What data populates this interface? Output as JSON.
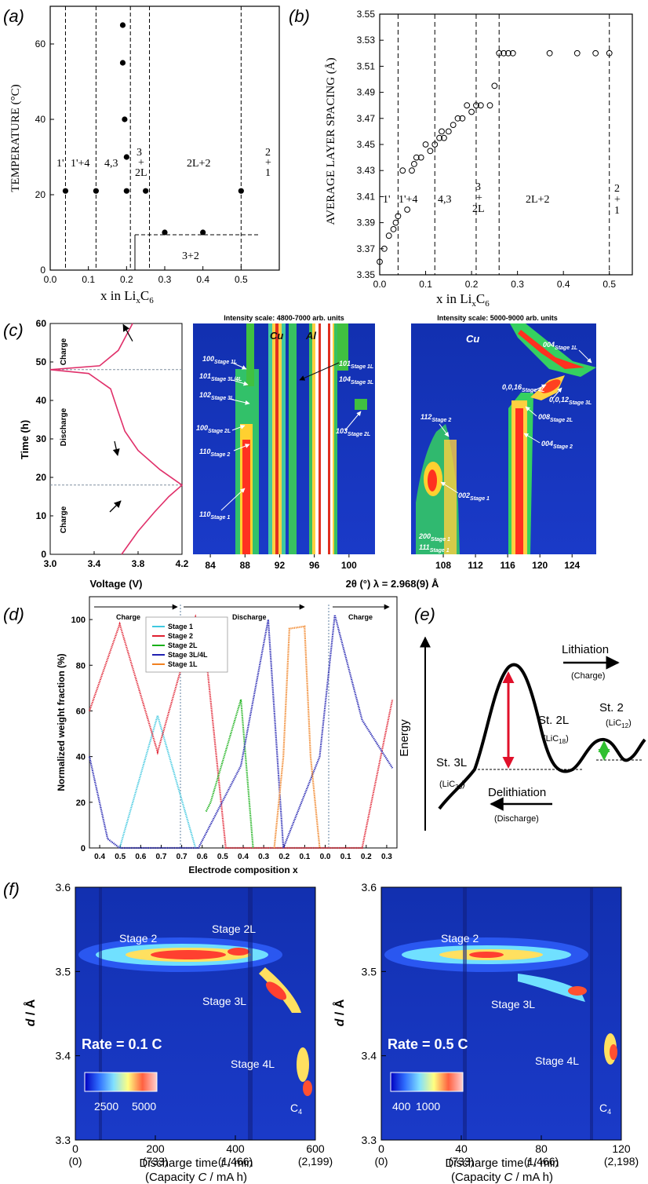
{
  "panel_labels": {
    "a": "(a)",
    "b": "(b)",
    "c": "(c)",
    "d": "(d)",
    "e": "(e)",
    "f": "(f)"
  },
  "chart_data": [
    {
      "id": "a",
      "type": "scatter",
      "xlabel_parts": [
        "x in Li",
        "x",
        "C",
        "6"
      ],
      "ylabel": "TEMPERATURE (°C)",
      "xlim": [
        0,
        0.6
      ],
      "ylim": [
        0,
        70
      ],
      "xticks": [
        "0.0",
        "0.1",
        "0.2",
        "0.3",
        "0.4",
        "0.5"
      ],
      "yticks": [
        "0",
        "20",
        "40",
        "60"
      ],
      "points": [
        [
          0.04,
          21
        ],
        [
          0.12,
          21
        ],
        [
          0.19,
          65
        ],
        [
          0.19,
          55
        ],
        [
          0.195,
          40
        ],
        [
          0.2,
          30
        ],
        [
          0.2,
          21
        ],
        [
          0.25,
          21
        ],
        [
          0.5,
          21
        ],
        [
          0.3,
          10
        ],
        [
          0.4,
          10
        ]
      ],
      "vlines": [
        0.04,
        0.12,
        0.21,
        0.26,
        0.5
      ],
      "regions": [
        "1'",
        "1'+4",
        "4,3",
        "3",
        "+",
        "2L",
        "2L+2",
        "2",
        "+",
        "1",
        "3+2"
      ]
    },
    {
      "id": "b",
      "type": "scatter",
      "xlabel_parts": [
        "x in Li",
        "x",
        "C",
        "6"
      ],
      "ylabel": "AVERAGE LAYER SPACING (Å)",
      "xlim": [
        0,
        0.55
      ],
      "ylim": [
        3.35,
        3.55
      ],
      "xticks": [
        "0.0",
        "0.1",
        "0.2",
        "0.3",
        "0.4",
        "0.5"
      ],
      "yticks": [
        "3.35",
        "3.37",
        "3.39",
        "3.41",
        "3.43",
        "3.45",
        "3.47",
        "3.49",
        "3.51",
        "3.53",
        "3.55"
      ],
      "points": [
        [
          0,
          3.36
        ],
        [
          0.01,
          3.37
        ],
        [
          0.02,
          3.38
        ],
        [
          0.03,
          3.385
        ],
        [
          0.035,
          3.39
        ],
        [
          0.04,
          3.395
        ],
        [
          0.05,
          3.43
        ],
        [
          0.06,
          3.4
        ],
        [
          0.07,
          3.43
        ],
        [
          0.075,
          3.435
        ],
        [
          0.08,
          3.44
        ],
        [
          0.09,
          3.44
        ],
        [
          0.1,
          3.45
        ],
        [
          0.11,
          3.445
        ],
        [
          0.12,
          3.45
        ],
        [
          0.13,
          3.455
        ],
        [
          0.135,
          3.46
        ],
        [
          0.14,
          3.455
        ],
        [
          0.15,
          3.46
        ],
        [
          0.16,
          3.465
        ],
        [
          0.17,
          3.47
        ],
        [
          0.18,
          3.47
        ],
        [
          0.19,
          3.48
        ],
        [
          0.2,
          3.475
        ],
        [
          0.21,
          3.48
        ],
        [
          0.22,
          3.48
        ],
        [
          0.24,
          3.48
        ],
        [
          0.25,
          3.495
        ],
        [
          0.26,
          3.52
        ],
        [
          0.27,
          3.52
        ],
        [
          0.28,
          3.52
        ],
        [
          0.29,
          3.52
        ],
        [
          0.37,
          3.52
        ],
        [
          0.43,
          3.52
        ],
        [
          0.47,
          3.52
        ],
        [
          0.5,
          3.52
        ]
      ],
      "vlines": [
        0.04,
        0.12,
        0.21,
        0.26,
        0.5
      ],
      "regions": [
        "1'",
        "1'+4",
        "4,3",
        "3",
        "+",
        "2L",
        "2L+2",
        "2",
        "+",
        "1"
      ]
    },
    {
      "id": "c1",
      "type": "line",
      "xlabel": "Voltage (V)",
      "ylabel": "Time (h)",
      "xlim": [
        3.0,
        4.2
      ],
      "ylim": [
        0,
        60
      ],
      "xticks": [
        "3.0",
        "3.4",
        "3.8",
        "4.2"
      ],
      "yticks": [
        "0",
        "10",
        "20",
        "30",
        "40",
        "50",
        "60"
      ],
      "series": [
        {
          "name": "voltage",
          "x": [
            3.65,
            3.8,
            3.95,
            4.08,
            4.2,
            4.0,
            3.8,
            3.68,
            3.62,
            3.55,
            3.35,
            3.0,
            3.45,
            3.62,
            3.75
          ],
          "y": [
            0,
            6,
            11,
            15,
            18,
            22,
            27,
            32,
            37,
            43,
            47,
            48,
            49,
            53,
            60
          ]
        }
      ],
      "hlines": [
        18,
        48
      ],
      "labels": [
        "Charge",
        "Discharge",
        "Charge"
      ]
    },
    {
      "id": "c2",
      "type": "heatmap",
      "title": "Intensity scale: 4800-7000 arb. units",
      "xlim": [
        82,
        103
      ],
      "ylim": [
        0,
        60
      ],
      "xticks": [
        "84",
        "88",
        "92",
        "96",
        "100"
      ],
      "annotations": [
        "Cu",
        "Al",
        "100",
        "Stage 1L",
        "101",
        "Stage 3L/4L",
        "102",
        "Stage 3L",
        "100",
        "Stage 2L",
        "110",
        "Stage 2",
        "110",
        "Stage 1",
        "101",
        "Stage 1L",
        "104",
        "Stage 3L",
        "103",
        "Stage 2L"
      ]
    },
    {
      "id": "c3",
      "type": "heatmap",
      "title": "Intensity scale: 5000-9000 arb. units",
      "xlim": [
        104,
        127
      ],
      "ylim": [
        0,
        60
      ],
      "xticks": [
        "108",
        "112",
        "116",
        "120",
        "124"
      ],
      "shared_xlabel": "2θ (°) λ = 2.968(9) Å",
      "annotations": [
        "Cu",
        "004",
        "Stage 1L",
        "0,0,16",
        "Stage 4L",
        "0,0,12",
        "Stage 3L",
        "008",
        "Stage 2L",
        "004",
        "Stage 2",
        "112",
        "Stage 2",
        "002",
        "Stage 1",
        "200",
        "Stage 1",
        "111",
        "Stage 1"
      ]
    },
    {
      "id": "d",
      "type": "line",
      "xlabel": "Electrode composition x",
      "ylabel": "Normalized weight fraction (%)",
      "ylim": [
        0,
        110
      ],
      "yticks": [
        "0",
        "20",
        "40",
        "60",
        "80",
        "100"
      ],
      "xticks": [
        "0.4",
        "0.5",
        "0.6",
        "0.7",
        "0.7",
        "0.6",
        "0.5",
        "0.4",
        "0.3",
        "0.2",
        "0.1",
        "0.0",
        "0.1",
        "0.2",
        "0.3"
      ],
      "series": [
        {
          "name": "Stage 1",
          "color": "#3fc8e0",
          "values": [
            [
              0.5,
              0
            ],
            [
              0.75,
              58
            ],
            [
              1.0,
              0
            ]
          ]
        },
        {
          "name": "Stage 2",
          "color": "#e02030",
          "values": [
            [
              0.3,
              60
            ],
            [
              0.5,
              98
            ],
            [
              0.75,
              42
            ],
            [
              1.0,
              101
            ],
            [
              1.07,
              84
            ],
            [
              1.2,
              0
            ],
            [
              2.1,
              0
            ],
            [
              2.3,
              65
            ]
          ]
        },
        {
          "name": "Stage 2L",
          "color": "#18b018",
          "values": [
            [
              1.07,
              16
            ],
            [
              1.1,
              20
            ],
            [
              1.3,
              65
            ],
            [
              1.38,
              0
            ]
          ]
        },
        {
          "name": "Stage 3L/4L",
          "color": "#2020b0",
          "values": [
            [
              0.3,
              40
            ],
            [
              0.42,
              4
            ],
            [
              0.5,
              0
            ],
            [
              1.02,
              0
            ],
            [
              1.3,
              36
            ],
            [
              1.48,
              100
            ],
            [
              1.58,
              0
            ],
            [
              1.82,
              40
            ],
            [
              1.92,
              102
            ],
            [
              2.1,
              56
            ],
            [
              2.3,
              35
            ]
          ]
        },
        {
          "name": "Stage 1L",
          "color": "#f08020",
          "values": [
            [
              1.52,
              0
            ],
            [
              1.58,
              40
            ],
            [
              1.62,
              96
            ],
            [
              1.72,
              97
            ],
            [
              1.76,
              40
            ],
            [
              1.82,
              0
            ]
          ]
        }
      ],
      "arrow_labels": [
        "Charge",
        "Discharge",
        "Charge"
      ]
    },
    {
      "id": "e",
      "type": "diagram",
      "ylabel": "Energy",
      "labels": [
        "Lithiation",
        "(Charge)",
        "St. 2L",
        "St. 2",
        "St. 3L",
        "Delithiation",
        "(Discharge)"
      ],
      "compounds": [
        {
          "text": "(LiC",
          "sub": "30",
          "close": ")"
        },
        {
          "text": "(LiC",
          "sub": "18",
          "close": ")"
        },
        {
          "text": "(LiC",
          "sub": "12",
          "close": ")"
        }
      ]
    },
    {
      "id": "f1",
      "type": "heatmap",
      "xlabel_parts": [
        "Discharge time ",
        "t",
        " / min"
      ],
      "xlabel2_parts": [
        "(Capacity ",
        "C",
        " / mA h)"
      ],
      "ylabel_parts": [
        "d",
        " / Å"
      ],
      "xlim": [
        0,
        600
      ],
      "ylim": [
        3.3,
        3.6
      ],
      "xticks": [
        "0",
        "200",
        "400",
        "600"
      ],
      "xticks2": [
        "(0)",
        "(733)",
        "(1,466)",
        "(2,199)"
      ],
      "yticks": [
        "3.3",
        "3.4",
        "3.5",
        "3.6"
      ],
      "rate": "Rate = 0.1 C",
      "colorbar": [
        "2500",
        "5000"
      ],
      "annotations": [
        "Stage 2",
        "Stage 2L",
        "Stage 3L",
        "Stage 4L",
        "C",
        "4"
      ]
    },
    {
      "id": "f2",
      "type": "heatmap",
      "xlabel_parts": [
        "Discharge time ",
        "t",
        " / min"
      ],
      "xlabel2_parts": [
        "(Capacity ",
        "C",
        " / mA h)"
      ],
      "ylabel_parts": [
        "d",
        " / Å"
      ],
      "xlim": [
        0,
        120
      ],
      "ylim": [
        3.3,
        3.6
      ],
      "xticks": [
        "0",
        "40",
        "80",
        "120"
      ],
      "xticks2": [
        "(0)",
        "(733)",
        "(1,466)",
        "(2,198)"
      ],
      "yticks": [
        "3.3",
        "3.4",
        "3.5",
        "3.6"
      ],
      "rate": "Rate = 0.5 C",
      "colorbar": [
        "400",
        "1000"
      ],
      "annotations": [
        "Stage 2",
        "Stage 3L",
        "Stage 4L",
        "C",
        "4"
      ]
    }
  ]
}
